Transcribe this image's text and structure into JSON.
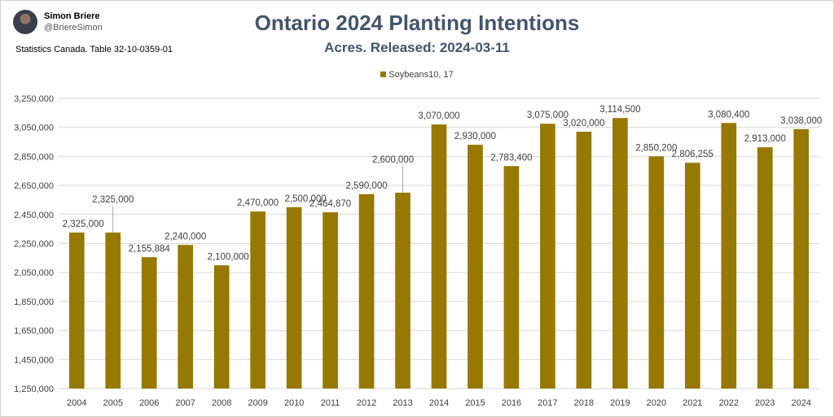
{
  "author": {
    "name": "Simon Briere",
    "handle": "@BriereSimon"
  },
  "source": "Statistics Canada. Table 32-10-0359-01",
  "colors": {
    "bar": "#977800",
    "title": "#44546a",
    "grid": "#d9d9d9"
  },
  "chart_data": {
    "type": "bar",
    "title": "Ontario 2024 Planting Intentions",
    "subtitle": "Acres. Released: 2024-03-11",
    "legend_position": "top",
    "grid": true,
    "ylim": [
      1250000,
      3250000
    ],
    "y_ticks": [
      1250000,
      1450000,
      1650000,
      1850000,
      2050000,
      2250000,
      2450000,
      2650000,
      2850000,
      3050000,
      3250000
    ],
    "y_tick_labels": [
      "1,250,000",
      "1,450,000",
      "1,650,000",
      "1,850,000",
      "2,050,000",
      "2,250,000",
      "2,450,000",
      "2,650,000",
      "2,850,000",
      "3,050,000",
      "3,250,000"
    ],
    "categories": [
      "2004",
      "2005",
      "2006",
      "2007",
      "2008",
      "2009",
      "2010",
      "2011",
      "2012",
      "2013",
      "2014",
      "2015",
      "2016",
      "2017",
      "2018",
      "2019",
      "2020",
      "2021",
      "2022",
      "2023",
      "2024"
    ],
    "series": [
      {
        "name": "Soybeans10, 17",
        "values": [
          2325000,
          2325000,
          2155884,
          2240000,
          2100000,
          2470000,
          2500000,
          2464870,
          2590000,
          2600000,
          3070000,
          2930000,
          2783400,
          3075000,
          3020000,
          3114500,
          2850200,
          2806255,
          3080400,
          2913000,
          3038000
        ],
        "labels": [
          "2,325,000",
          "2,325,000",
          "2,155,884",
          "2,240,000",
          "2,100,000",
          "2,470,000",
          "2,500,000",
          "2,464,870",
          "2,590,000",
          "2,600,000",
          "3,070,000",
          "2,930,000",
          "2,783,400",
          "3,075,000",
          "3,020,000",
          "3,114,500",
          "2,850,200",
          "2,806,255",
          "3,080,400",
          "2,913,000",
          "3,038,000"
        ]
      }
    ]
  }
}
